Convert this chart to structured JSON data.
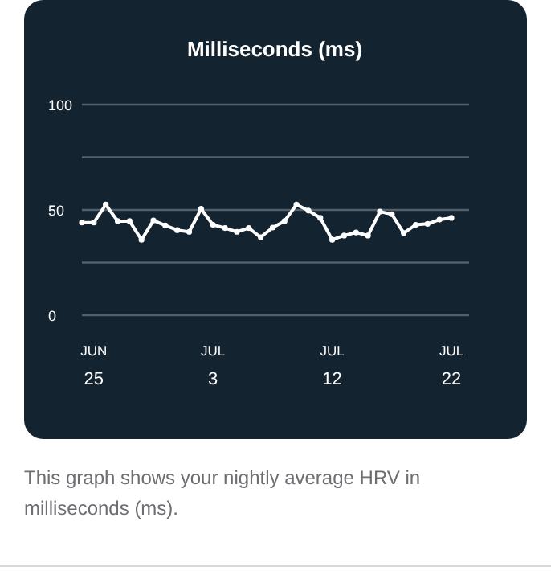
{
  "chart_data": {
    "type": "line",
    "title": "Milliseconds (ms)",
    "categories": [
      null,
      "JUN 25",
      null,
      null,
      null,
      null,
      null,
      null,
      null,
      null,
      null,
      "JUL 3",
      null,
      null,
      null,
      null,
      null,
      null,
      null,
      null,
      null,
      "JUL 12",
      null,
      null,
      null,
      null,
      null,
      null,
      null,
      null,
      null,
      "JUL 22"
    ],
    "series": [
      {
        "color": "#ffffff",
        "values": [
          44,
          44,
          52.5,
          44.7,
          44.7,
          35.8,
          45,
          42.6,
          40.4,
          39.6,
          50.5,
          42.9,
          41.4,
          39.6,
          41.4,
          37,
          41.6,
          44.7,
          52.5,
          49.7,
          46.2,
          35.8,
          37.8,
          39.3,
          37.8,
          49.2,
          48,
          39,
          42.9,
          43.4,
          45.4,
          46.2
        ]
      }
    ],
    "ylim": [
      0,
      100
    ],
    "yticks": [
      0,
      {
        "value": 25,
        "label": null
      },
      50,
      {
        "value": 75,
        "label": null
      },
      100
    ],
    "grid": "y",
    "marker": "circle",
    "line_style": "solid",
    "annotations": [
      "This graph shows your nightly average HRV in milliseconds (ms)."
    ]
  }
}
